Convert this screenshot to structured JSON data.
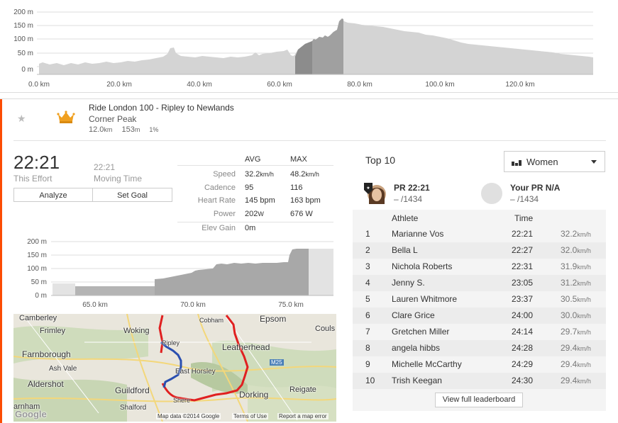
{
  "top_profile": {
    "y_ticks": [
      "200 m",
      "150 m",
      "100 m",
      "50 m",
      "0 m"
    ],
    "x_ticks": [
      "0.0 km",
      "20.0 km",
      "40.0 km",
      "60.0 km",
      "80.0 km",
      "100.0 km",
      "120.0 km"
    ]
  },
  "segment": {
    "title": "Ride London 100 - Ripley to Newlands",
    "subtitle": "Corner Peak",
    "distance": "12.0",
    "distance_unit": "km",
    "elevation": "153",
    "elevation_unit": "m",
    "grade": "1%",
    "star_icon": "★"
  },
  "effort": {
    "time": "22:21",
    "time_label": "This Effort",
    "moving_time": "22:21",
    "moving_label": "Moving Time",
    "analyze_label": "Analyze",
    "goal_label": "Set Goal"
  },
  "stats": {
    "avg_header": "AVG",
    "max_header": "MAX",
    "rows": [
      {
        "label": "Speed",
        "avg": "32.2",
        "avg_unit": "km/h",
        "max": "48.2",
        "max_unit": "km/h"
      },
      {
        "label": "Cadence",
        "avg": "95",
        "avg_unit": "",
        "max": "116",
        "max_unit": ""
      },
      {
        "label": "Heart Rate",
        "avg": "145 bpm",
        "avg_unit": "",
        "max": "163 bpm",
        "max_unit": ""
      },
      {
        "label": "Power",
        "avg": "202",
        "avg_unit": "W",
        "max": "676 W",
        "max_unit": ""
      },
      {
        "label": "Elev Gain",
        "avg": "0m",
        "avg_unit": "",
        "max": "",
        "max_unit": ""
      }
    ]
  },
  "zoom_profile": {
    "y_ticks": [
      "200 m",
      "150 m",
      "100 m",
      "50 m",
      "0 m"
    ],
    "x_ticks": [
      "65.0 km",
      "70.0 km",
      "75.0 km"
    ]
  },
  "map": {
    "places": [
      "Camberley",
      "Frimley",
      "Woking",
      "Cobham",
      "Epsom",
      "Couls",
      "Farnborough",
      "Ripley",
      "Leatherhead",
      "Ash Vale",
      "East Horsley",
      "M25",
      "Aldershot",
      "Guildford",
      "Dorking",
      "Reigate",
      "arnham",
      "Shalford",
      "Shere",
      "Google"
    ],
    "footer": [
      "Map data ©2014 Google",
      "Terms of Use",
      "Report a map error"
    ]
  },
  "leaderboard": {
    "title": "Top 10",
    "filter": "Women",
    "pr_label": "PR 22:21",
    "pr_rank": "– /1434",
    "your_pr_label": "Your PR N/A",
    "your_pr_rank": "– /1434",
    "col_athlete": "Athlete",
    "col_time": "Time",
    "rows": [
      {
        "rank": "1",
        "name": "Marianne Vos",
        "time": "22:21",
        "speed": "32.2",
        "unit": "km/h"
      },
      {
        "rank": "2",
        "name": "Bella L",
        "time": "22:27",
        "speed": "32.0",
        "unit": "km/h"
      },
      {
        "rank": "3",
        "name": "Nichola Roberts",
        "time": "22:31",
        "speed": "31.9",
        "unit": "km/h"
      },
      {
        "rank": "4",
        "name": "Jenny S.",
        "time": "23:05",
        "speed": "31.2",
        "unit": "km/h"
      },
      {
        "rank": "5",
        "name": "Lauren Whitmore",
        "time": "23:37",
        "speed": "30.5",
        "unit": "km/h"
      },
      {
        "rank": "6",
        "name": "Clare Grice",
        "time": "24:00",
        "speed": "30.0",
        "unit": "km/h"
      },
      {
        "rank": "7",
        "name": "Gretchen Miller",
        "time": "24:14",
        "speed": "29.7",
        "unit": "km/h"
      },
      {
        "rank": "8",
        "name": "angela hibbs",
        "time": "24:28",
        "speed": "29.4",
        "unit": "km/h"
      },
      {
        "rank": "9",
        "name": "Michelle McCarthy",
        "time": "24:29",
        "speed": "29.4",
        "unit": "km/h"
      },
      {
        "rank": "10",
        "name": "Trish Keegan",
        "time": "24:30",
        "speed": "29.4",
        "unit": "km/h"
      }
    ],
    "view_full_label": "View full leaderboard"
  },
  "colors": {
    "accent": "#fc4c02",
    "route_red": "#e02020",
    "route_blue": "#2a4fb0",
    "crown": "#f0a020"
  }
}
